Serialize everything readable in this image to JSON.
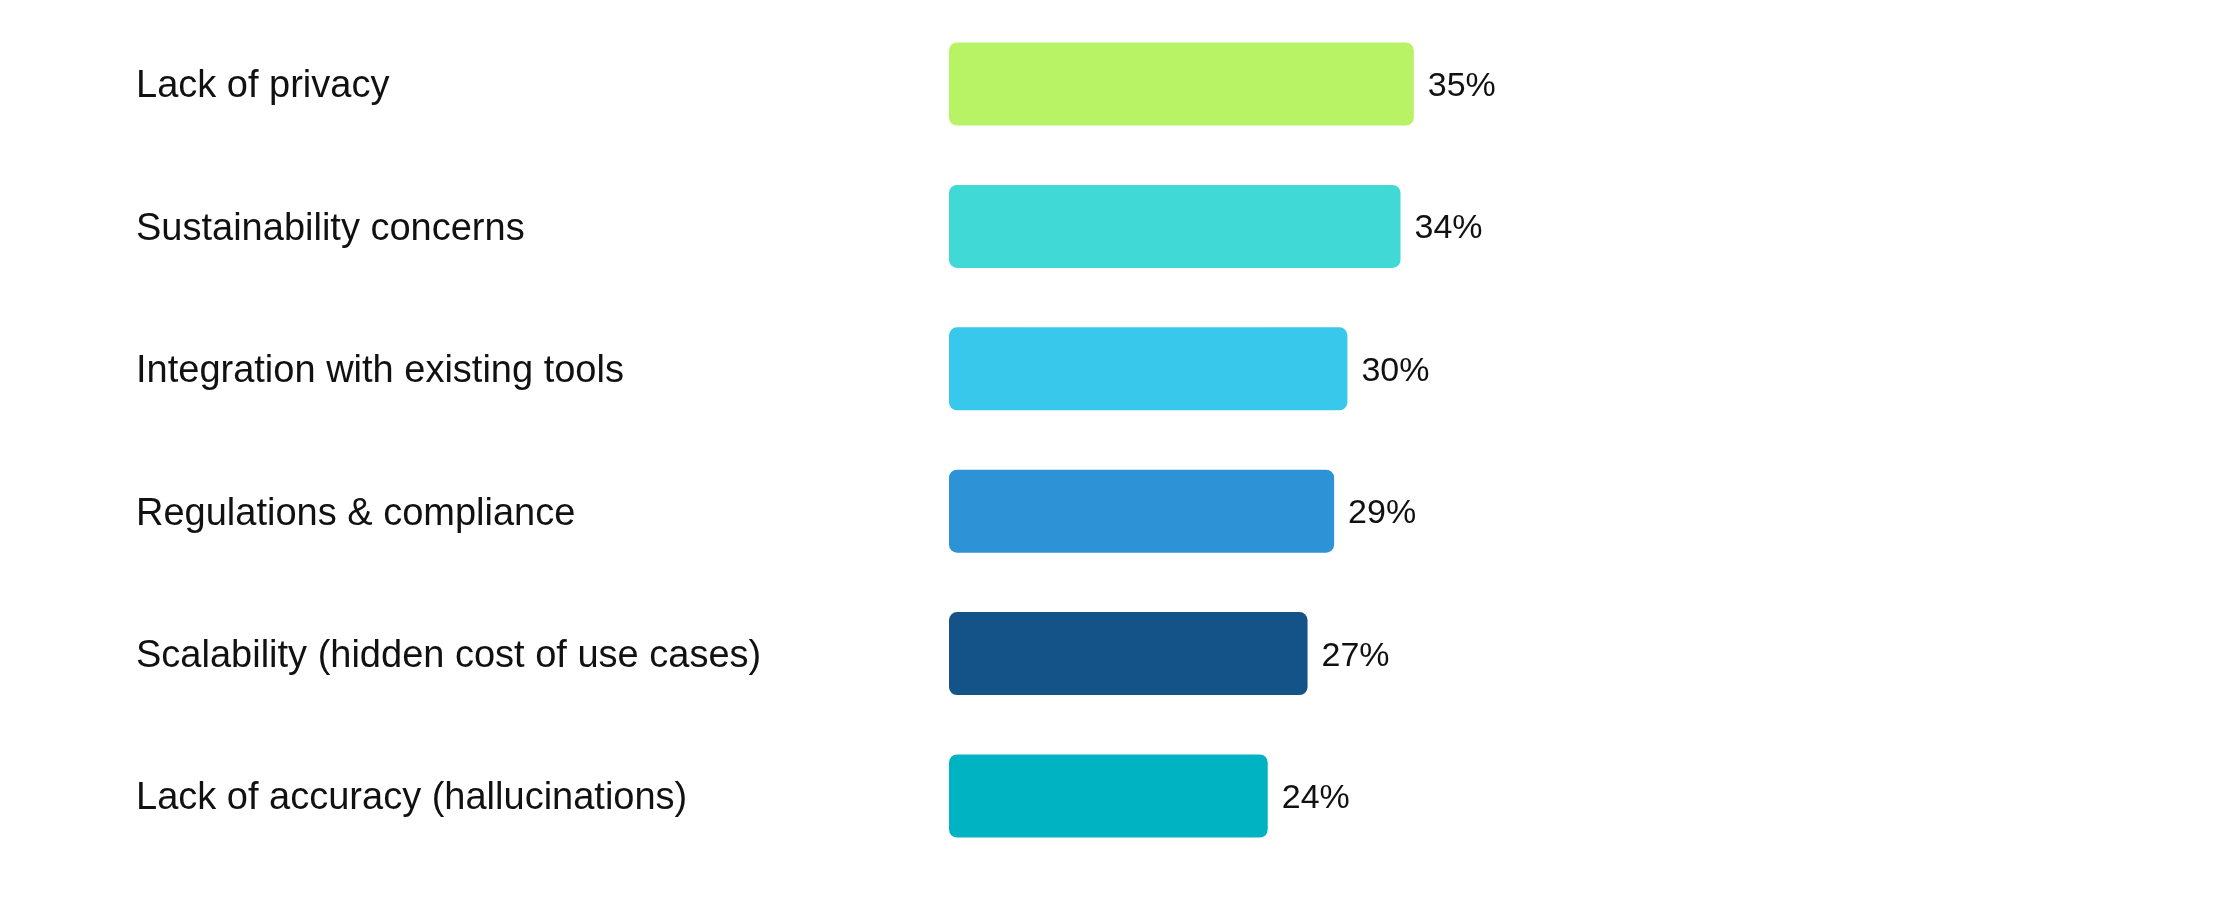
{
  "chart_data": {
    "type": "bar",
    "orientation": "horizontal",
    "categories": [
      "Lack of privacy",
      "Sustainability concerns",
      "Integration with existing tools",
      "Regulations & compliance",
      "Scalability (hidden cost of use cases)",
      "Lack of accuracy (hallucinations)"
    ],
    "values": [
      35,
      34,
      30,
      29,
      27,
      24
    ],
    "colors": [
      "#b8f265",
      "#40d9d6",
      "#38c8ec",
      "#2e92d6",
      "#145388",
      "#00b3c2"
    ],
    "value_labels": [
      "35%",
      "34%",
      "30%",
      "29%",
      "27%",
      "24%"
    ]
  }
}
